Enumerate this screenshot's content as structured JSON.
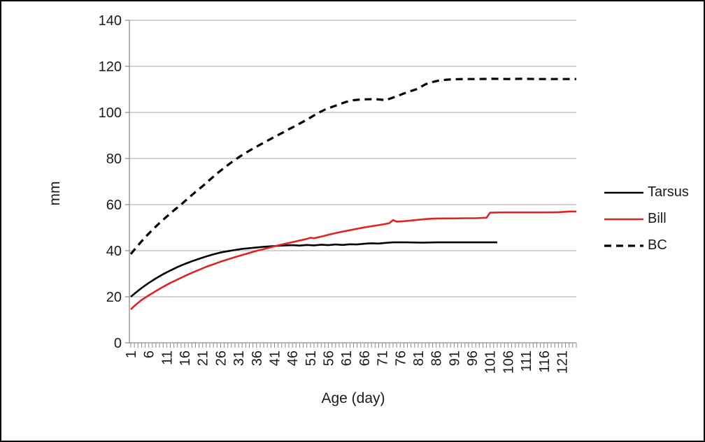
{
  "chart_data": {
    "type": "line",
    "title": "",
    "xlabel": "Age (day)",
    "ylabel": "mm",
    "x_ticks": [
      1,
      6,
      11,
      16,
      21,
      26,
      31,
      36,
      41,
      46,
      51,
      56,
      61,
      66,
      71,
      76,
      81,
      86,
      91,
      96,
      101,
      106,
      111,
      116,
      121
    ],
    "x_minor_tick_step": 1,
    "xlim": [
      1,
      125
    ],
    "y_ticks": [
      0,
      20,
      40,
      60,
      80,
      100,
      120,
      140
    ],
    "ylim": [
      0,
      140
    ],
    "grid": "horizontal",
    "legend_position": "right",
    "colors": {
      "grid": "#a6a6a6",
      "axis": "#8c8c8c",
      "text": "#1a1a1a",
      "border": "#000000"
    },
    "series": [
      {
        "name": "Tarsus",
        "color": "#000000",
        "dash": "solid",
        "points": [
          [
            1,
            20
          ],
          [
            2,
            21.3
          ],
          [
            4,
            23.8
          ],
          [
            6,
            26
          ],
          [
            8,
            28
          ],
          [
            10,
            29.8
          ],
          [
            12,
            31.4
          ],
          [
            14,
            32.9
          ],
          [
            16,
            34.2
          ],
          [
            18,
            35.4
          ],
          [
            20,
            36.5
          ],
          [
            22,
            37.5
          ],
          [
            24,
            38.4
          ],
          [
            26,
            39.2
          ],
          [
            28,
            39.8
          ],
          [
            30,
            40.3
          ],
          [
            32,
            40.8
          ],
          [
            34,
            41.1
          ],
          [
            36,
            41.4
          ],
          [
            38,
            41.7
          ],
          [
            40,
            41.9
          ],
          [
            42,
            42.1
          ],
          [
            44,
            42.3
          ],
          [
            46,
            42.4
          ],
          [
            48,
            42.2
          ],
          [
            50,
            42.5
          ],
          [
            52,
            42.3
          ],
          [
            54,
            42.6
          ],
          [
            56,
            42.4
          ],
          [
            58,
            42.7
          ],
          [
            60,
            42.5
          ],
          [
            62,
            42.8
          ],
          [
            64,
            42.7
          ],
          [
            66,
            43
          ],
          [
            68,
            43.2
          ],
          [
            70,
            43.1
          ],
          [
            72,
            43.4
          ],
          [
            74,
            43.6
          ],
          [
            78,
            43.6
          ],
          [
            82,
            43.5
          ],
          [
            86,
            43.6
          ],
          [
            90,
            43.6
          ],
          [
            94,
            43.6
          ],
          [
            98,
            43.6
          ],
          [
            103,
            43.6
          ]
        ]
      },
      {
        "name": "Bill",
        "color": "#db2522",
        "dash": "solid",
        "points": [
          [
            1,
            14.5
          ],
          [
            2,
            16
          ],
          [
            4,
            18.6
          ],
          [
            6,
            20.6
          ],
          [
            8,
            22.5
          ],
          [
            10,
            24.3
          ],
          [
            12,
            26
          ],
          [
            14,
            27.5
          ],
          [
            16,
            29
          ],
          [
            18,
            30.4
          ],
          [
            20,
            31.7
          ],
          [
            22,
            33
          ],
          [
            24,
            34.1
          ],
          [
            26,
            35.2
          ],
          [
            28,
            36.2
          ],
          [
            30,
            37.2
          ],
          [
            32,
            38.1
          ],
          [
            34,
            39
          ],
          [
            36,
            39.9
          ],
          [
            38,
            40.7
          ],
          [
            40,
            41.5
          ],
          [
            42,
            42.3
          ],
          [
            44,
            43
          ],
          [
            46,
            43.7
          ],
          [
            48,
            44.4
          ],
          [
            50,
            45.1
          ],
          [
            51,
            45.6
          ],
          [
            52,
            45.4
          ],
          [
            54,
            46.1
          ],
          [
            56,
            46.9
          ],
          [
            58,
            47.6
          ],
          [
            60,
            48.3
          ],
          [
            62,
            48.9
          ],
          [
            64,
            49.5
          ],
          [
            66,
            50.1
          ],
          [
            68,
            50.6
          ],
          [
            70,
            51.1
          ],
          [
            72,
            51.6
          ],
          [
            73,
            52
          ],
          [
            74,
            53.3
          ],
          [
            75,
            52.6
          ],
          [
            77,
            52.8
          ],
          [
            79,
            53.1
          ],
          [
            81,
            53.4
          ],
          [
            83,
            53.7
          ],
          [
            85,
            53.9
          ],
          [
            88,
            54
          ],
          [
            91,
            54
          ],
          [
            94,
            54.1
          ],
          [
            97,
            54.1
          ],
          [
            100,
            54.3
          ],
          [
            101,
            56.5
          ],
          [
            104,
            56.6
          ],
          [
            108,
            56.6
          ],
          [
            112,
            56.6
          ],
          [
            116,
            56.6
          ],
          [
            120,
            56.7
          ],
          [
            123,
            57
          ],
          [
            125,
            57
          ]
        ]
      },
      {
        "name": "BC",
        "color": "#000000",
        "dash": "dashed",
        "points": [
          [
            1,
            38.5
          ],
          [
            3,
            42.3
          ],
          [
            5,
            45.8
          ],
          [
            7,
            49
          ],
          [
            9,
            52
          ],
          [
            11,
            54.8
          ],
          [
            13,
            57.5
          ],
          [
            15,
            60
          ],
          [
            17,
            62.8
          ],
          [
            19,
            65.5
          ],
          [
            21,
            68
          ],
          [
            23,
            70.8
          ],
          [
            25,
            73.5
          ],
          [
            27,
            76
          ],
          [
            29,
            78.3
          ],
          [
            31,
            80.5
          ],
          [
            33,
            82.5
          ],
          [
            35,
            84.3
          ],
          [
            37,
            86
          ],
          [
            39,
            87.7
          ],
          [
            41,
            89.4
          ],
          [
            43,
            91
          ],
          [
            45,
            92.7
          ],
          [
            47,
            94.3
          ],
          [
            49,
            96
          ],
          [
            51,
            97.8
          ],
          [
            53,
            99.6
          ],
          [
            55,
            101.2
          ],
          [
            57,
            102.4
          ],
          [
            59,
            103.5
          ],
          [
            61,
            104.6
          ],
          [
            63,
            105.3
          ],
          [
            65,
            105.6
          ],
          [
            67,
            105.7
          ],
          [
            69,
            105.8
          ],
          [
            71,
            105.5
          ],
          [
            72,
            105.2
          ],
          [
            73,
            105.9
          ],
          [
            75,
            107
          ],
          [
            77,
            108.2
          ],
          [
            79,
            109.3
          ],
          [
            81,
            110.3
          ],
          [
            82,
            111.3
          ],
          [
            83,
            112.2
          ],
          [
            85,
            113.2
          ],
          [
            87,
            113.9
          ],
          [
            89,
            114.2
          ],
          [
            91,
            114.4
          ],
          [
            94,
            114.5
          ],
          [
            98,
            114.5
          ],
          [
            102,
            114.6
          ],
          [
            106,
            114.5
          ],
          [
            110,
            114.6
          ],
          [
            114,
            114.5
          ],
          [
            118,
            114.5
          ],
          [
            122,
            114.5
          ],
          [
            125,
            114.5
          ]
        ]
      }
    ]
  }
}
